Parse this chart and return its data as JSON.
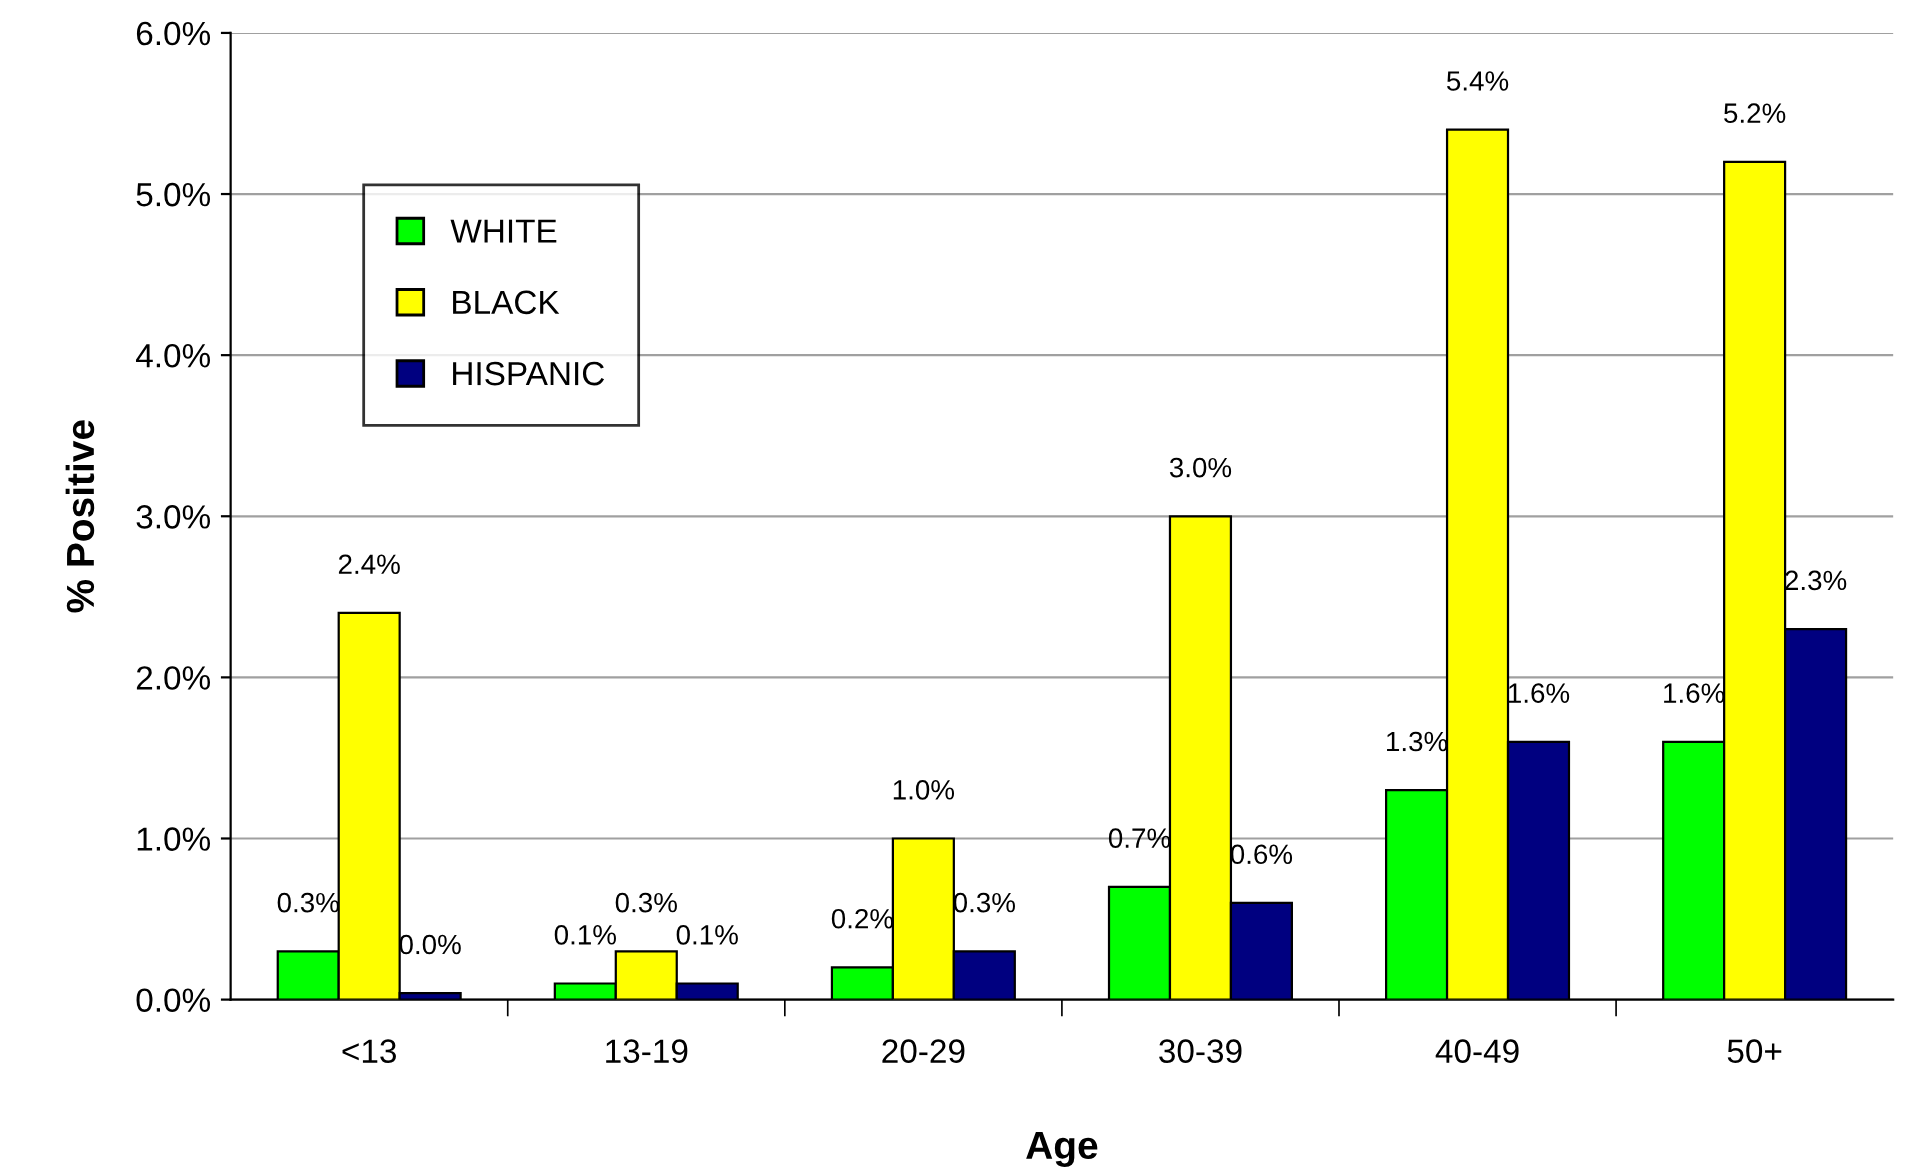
{
  "chart_data": {
    "type": "bar",
    "xlabel": "Age",
    "ylabel": "% Positive",
    "categories": [
      "<13",
      "13-19",
      "20-29",
      "30-39",
      "40-49",
      "50+"
    ],
    "series": [
      {
        "name": "WHITE",
        "color": "#00ff00",
        "values": [
          0.3,
          0.1,
          0.2,
          0.7,
          1.3,
          1.6
        ],
        "value_labels": [
          "0.3%",
          "0.1%",
          "0.2%",
          "0.7%",
          "1.3%",
          "1.6%"
        ]
      },
      {
        "name": "BLACK",
        "color": "#ffff00",
        "values": [
          2.4,
          0.3,
          1.0,
          3.0,
          5.4,
          5.2
        ],
        "value_labels": [
          "2.4%",
          "0.3%",
          "1.0%",
          "3.0%",
          "5.4%",
          "5.2%"
        ]
      },
      {
        "name": "HISPANIC",
        "color": "#000080",
        "values": [
          0.04,
          0.1,
          0.3,
          0.6,
          1.6,
          2.3
        ],
        "value_labels": [
          "0.0%",
          "0.1%",
          "0.3%",
          "0.6%",
          "1.6%",
          "2.3%"
        ]
      }
    ],
    "ylim": [
      0,
      6
    ],
    "yticks": [
      {
        "value": 0,
        "label": "0.0%"
      },
      {
        "value": 1,
        "label": "1.0%"
      },
      {
        "value": 2,
        "label": "2.0%"
      },
      {
        "value": 3,
        "label": "3.0%"
      },
      {
        "value": 4,
        "label": "4.0%"
      },
      {
        "value": 5,
        "label": "5.0%"
      },
      {
        "value": 6,
        "label": "6.0%"
      }
    ],
    "grid": "y",
    "legend": "top left"
  }
}
